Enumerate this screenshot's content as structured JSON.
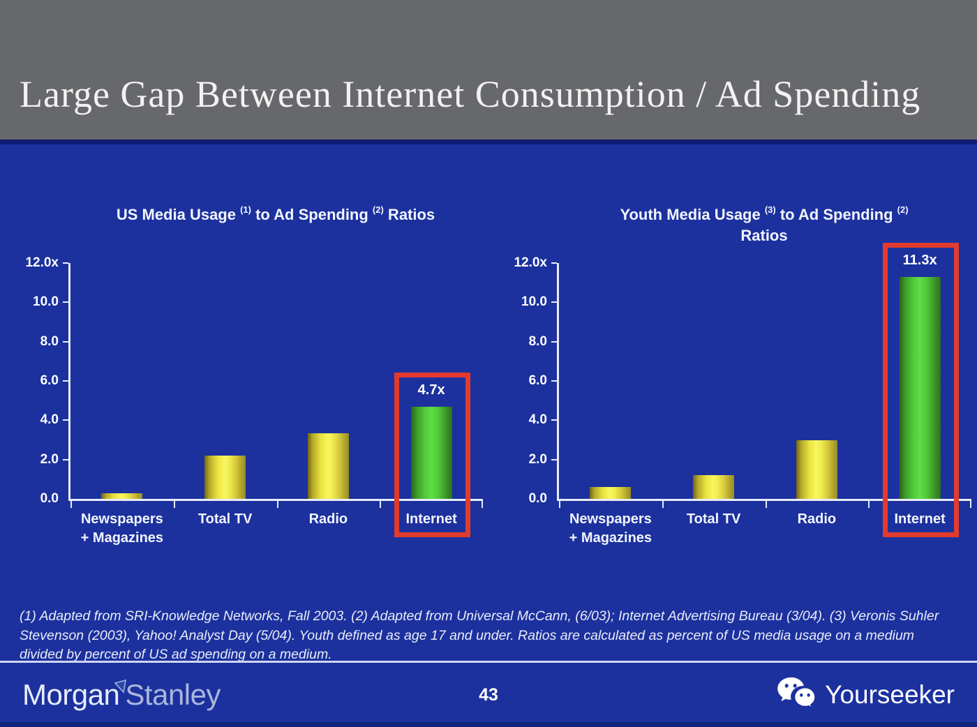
{
  "header": {
    "title": "Large Gap Between Internet Consumption / Ad Spending"
  },
  "colors": {
    "background_blue": "#1C319E",
    "header_gray": "#67686B",
    "highlight_red": "#E23B2D",
    "bar_yellow": "#F2EE4E",
    "bar_green": "#56D83E",
    "text_white": "#FFFFFF"
  },
  "chart_data": [
    {
      "type": "bar",
      "title_segments": [
        {
          "text": "US Media Usage "
        },
        {
          "sup": "(1)"
        },
        {
          "text": " to Ad Spending "
        },
        {
          "sup": "(2)"
        },
        {
          "text": " Ratios"
        }
      ],
      "title_plain": "US Media Usage (1) to Ad Spending (2) Ratios",
      "categories": [
        [
          "Newspapers",
          "+ Magazines"
        ],
        [
          "Total TV"
        ],
        [
          "Radio"
        ],
        [
          "Internet"
        ]
      ],
      "values": [
        0.3,
        2.2,
        3.35,
        4.7
      ],
      "bar_labels": [
        null,
        null,
        null,
        "4.7x"
      ],
      "bar_styles": [
        "yellow",
        "yellow",
        "yellow",
        "green"
      ],
      "highlight_index": 3,
      "ylim": [
        0,
        12
      ],
      "ytick_labels": [
        "12.0x",
        "10.0",
        "8.0",
        "6.0",
        "4.0",
        "2.0",
        "0.0"
      ],
      "xlabel": "",
      "ylabel": "",
      "grid": false,
      "legend": null
    },
    {
      "type": "bar",
      "title_segments": [
        {
          "text": "Youth Media Usage "
        },
        {
          "sup": "(3)"
        },
        {
          "text": " to Ad Spending "
        },
        {
          "sup": "(2)"
        },
        {
          "br": true
        },
        {
          "text": "Ratios"
        }
      ],
      "title_plain": "Youth Media Usage (3) to Ad Spending (2) Ratios",
      "categories": [
        [
          "Newspapers",
          "+ Magazines"
        ],
        [
          "Total TV"
        ],
        [
          "Radio"
        ],
        [
          "Internet"
        ]
      ],
      "values": [
        0.6,
        1.2,
        3.0,
        11.3
      ],
      "bar_labels": [
        null,
        null,
        null,
        "11.3x"
      ],
      "bar_styles": [
        "yellow",
        "yellow",
        "yellow",
        "green"
      ],
      "highlight_index": 3,
      "ylim": [
        0,
        12
      ],
      "ytick_labels": [
        "12.0x",
        "10.0",
        "8.0",
        "6.0",
        "4.0",
        "2.0",
        "0.0"
      ],
      "xlabel": "",
      "ylabel": "",
      "grid": false,
      "legend": null
    }
  ],
  "footnote": {
    "text": "(1) Adapted from SRI-Knowledge Networks, Fall 2003.  (2) Adapted from Universal McCann, (6/03); Internet Advertising Bureau (3/04). (3) Veronis Suhler Stevenson (2003), Yahoo! Analyst Day (5/04).  Youth defined as age 17 and under.  Ratios are calculated as percent of US media usage on a medium divided by percent of US ad spending on a medium."
  },
  "footer": {
    "logo_morgan": "Morgan",
    "logo_stanley": "Stanley",
    "page_number": "43",
    "partner_name": "Yourseeker"
  }
}
